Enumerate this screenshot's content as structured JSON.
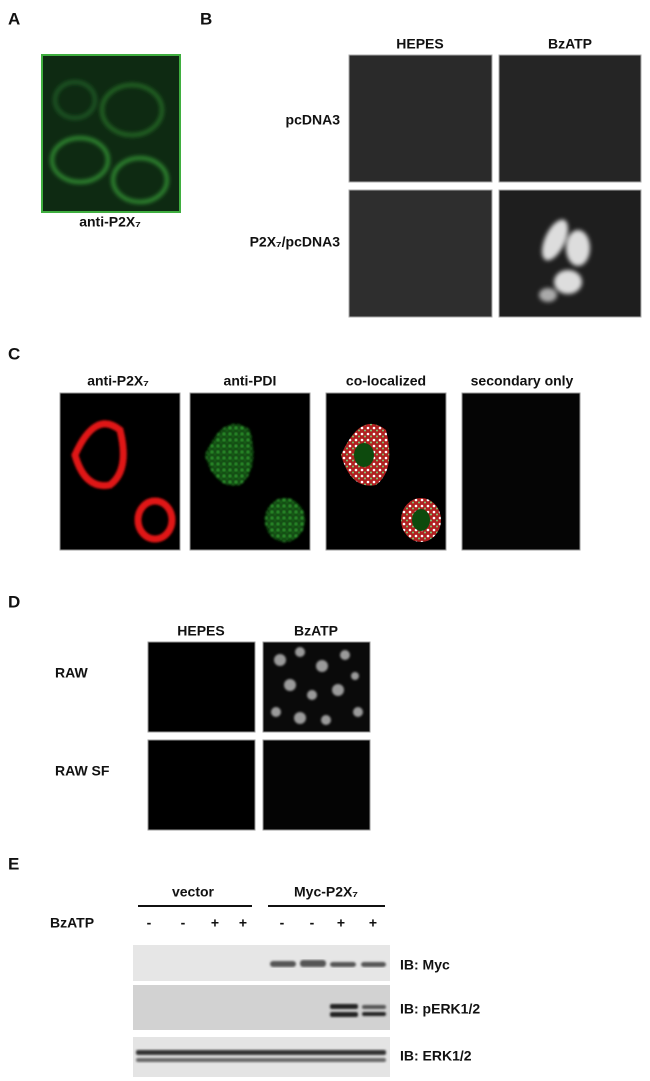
{
  "panels": {
    "A": {
      "letter": "A",
      "caption": "anti-P2X₇"
    },
    "B": {
      "letter": "B",
      "columns": [
        "HEPES",
        "BzATP"
      ],
      "rows": [
        "pcDNA3",
        "P2X₇/pcDNA3"
      ]
    },
    "C": {
      "letter": "C",
      "columns": [
        "anti-P2X₇",
        "anti-PDI",
        "co-localized",
        "secondary only"
      ]
    },
    "D": {
      "letter": "D",
      "columns": [
        "HEPES",
        "BzATP"
      ],
      "rows": [
        "RAW",
        "RAW SF"
      ]
    },
    "E": {
      "letter": "E",
      "groups": [
        "vector",
        "Myc-P2X₇"
      ],
      "treatment": "BzATP",
      "signs": [
        "-",
        "-",
        "+",
        "+",
        "-",
        "-",
        "+",
        "+"
      ],
      "blots": [
        "IB: Myc",
        "IB: pERK1/2",
        "IB: ERK1/2"
      ]
    }
  }
}
